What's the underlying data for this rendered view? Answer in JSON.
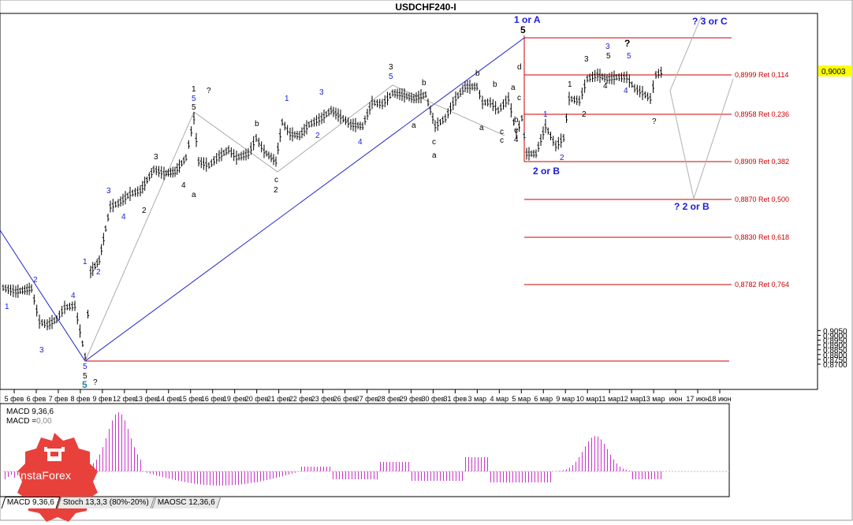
{
  "title": "USDCHF240-I",
  "colors": {
    "price": "#000000",
    "wave_blue": "#1a1adc",
    "level_red": "#cc0000",
    "histogram": "#cc33cc",
    "current_price_bg": "#ffff00",
    "logo_red": "#e8413c",
    "forecast_line": "#b0b0b0",
    "trend_line": "#2222cc"
  },
  "chart_data": {
    "type": "ohlc",
    "symbol": "USDCHF",
    "timeframe": "H4",
    "y_axis_ticks": [
      "0,9050",
      "0,9000",
      "0,8950",
      "0,8900",
      "0,8850",
      "0,8800",
      "0,8750",
      "0,8700"
    ],
    "y_axis_values": [
      0.905,
      0.9,
      0.895,
      0.89,
      0.885,
      0.88,
      0.875,
      0.87
    ],
    "current_price": "0,9003",
    "x_axis_ticks": [
      "5 фев",
      "6 фев",
      "7 фев",
      "8 фев",
      "9 фев",
      "12 фев",
      "13 фев",
      "14 фев",
      "15 фев",
      "16 фев",
      "19 фев",
      "20 фев",
      "21 фев",
      "22 фев",
      "23 фев",
      "26 фев",
      "27 фев",
      "28 фев",
      "29 фев",
      "30 фев",
      "31 фев",
      "3 мар",
      "4 мар",
      "5 мар",
      "6 мар",
      "9 мар",
      "10 мар",
      "11 мар",
      "12 мар",
      "13 мар",
      "июн",
      "17 июн",
      "18 июн"
    ],
    "levels": [
      {
        "label": "0,8999 Ret 0,114",
        "value": 0.8999
      },
      {
        "label": "0,8958 Ret 0,236",
        "value": 0.8958
      },
      {
        "label": "0,8909 Ret 0,382",
        "value": 0.8909
      },
      {
        "label": "0,8870 Ret 0,500",
        "value": 0.887
      },
      {
        "label": "0,8830 Ret 0,618",
        "value": 0.883
      },
      {
        "label": "0,8782 Ret 0,764",
        "value": 0.8782
      }
    ],
    "wave_labels": [
      {
        "text": "1 or A",
        "color": "blue"
      },
      {
        "text": "5",
        "color": "black"
      },
      {
        "text": "? 3 or C",
        "color": "blue"
      },
      {
        "text": "2 or B",
        "color": "blue"
      },
      {
        "text": "? 2 or B",
        "color": "blue"
      },
      {
        "text": "5",
        "color": "teal"
      },
      {
        "text": "?",
        "color": "black"
      }
    ]
  },
  "indicator": {
    "macd_label": "MACD 9,36,6",
    "macd_value": "MACD = 0,00"
  },
  "tabs": [
    {
      "label": "MACD 9,36,6"
    },
    {
      "label": "Stoch 13,3,3 (80%-20%)"
    },
    {
      "label": "MAOSC 12,36,6"
    }
  ],
  "logo": {
    "text": "InstaForex",
    "icon": "instaforex-bull-icon"
  }
}
